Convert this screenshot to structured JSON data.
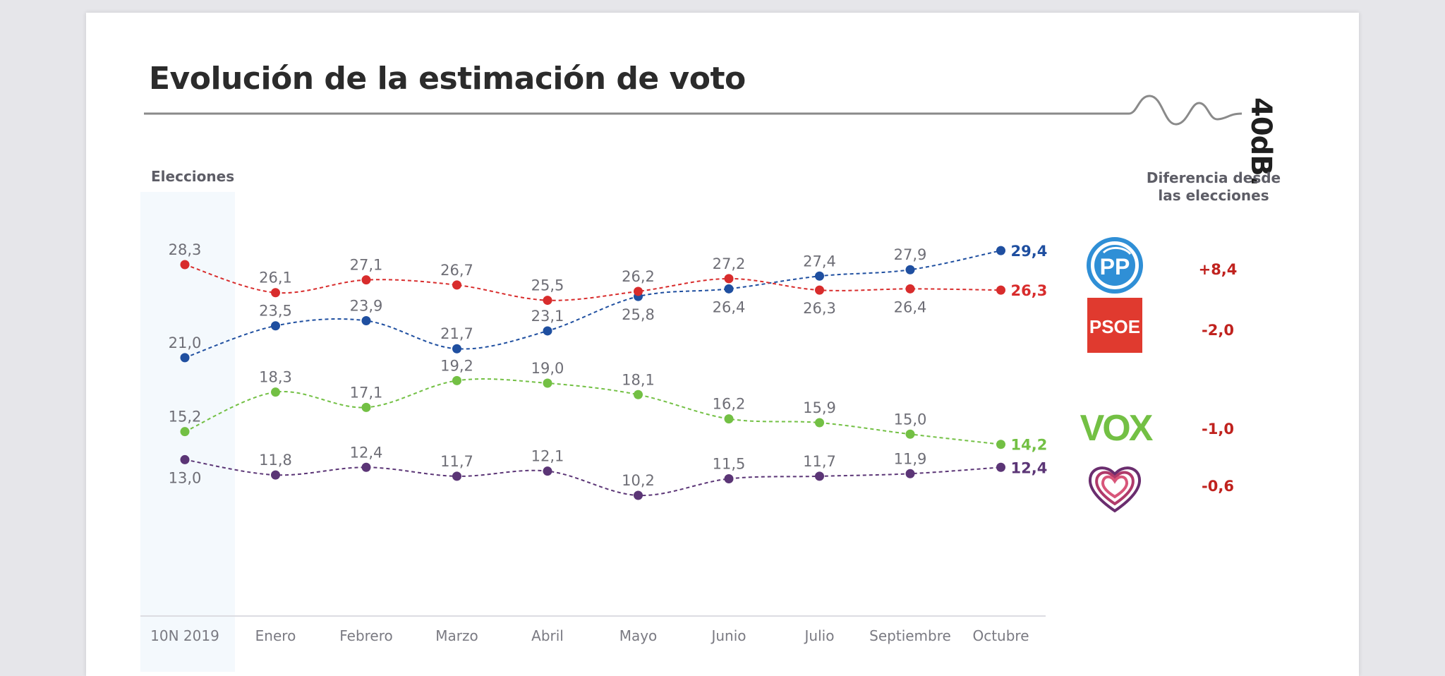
{
  "title": "Evolución de la estimación de voto",
  "brand": "40dB.",
  "elections_header": "Elecciones",
  "difference_header": [
    "Diferencia desde",
    "las elecciones"
  ],
  "chart_data": {
    "type": "line",
    "title": "Evolución de la estimación de voto",
    "x": [
      "10N 2019",
      "Enero",
      "Febrero",
      "Marzo",
      "Abril",
      "Mayo",
      "Junio",
      "Julio",
      "Septiembre",
      "Octubre"
    ],
    "ylim": [
      8,
      31
    ],
    "grid": false,
    "series": [
      {
        "name": "PP",
        "color": "#1f4fa0",
        "values": [
          21.0,
          23.5,
          23.9,
          21.7,
          23.1,
          25.8,
          26.4,
          27.4,
          27.9,
          29.4
        ],
        "labels": [
          "21,0",
          "23,5",
          "23,9",
          "21,7",
          "23,1",
          "25,8",
          "26,4",
          "27,4",
          "27,9",
          "29,4"
        ],
        "label_pos": [
          "above",
          "above",
          "above",
          "above",
          "above",
          "below",
          "below",
          "above",
          "above",
          "right"
        ]
      },
      {
        "name": "PSOE",
        "color": "#d82c2c",
        "values": [
          28.3,
          26.1,
          27.1,
          26.7,
          25.5,
          26.2,
          27.2,
          26.3,
          26.4,
          26.3
        ],
        "labels": [
          "28,3",
          "26,1",
          "27,1",
          "26,7",
          "25,5",
          "26,2",
          "27,2",
          "26,3",
          "26,4",
          "26,3"
        ],
        "label_pos": [
          "above",
          "above",
          "above",
          "above",
          "above",
          "above",
          "above",
          "below",
          "below",
          "right"
        ]
      },
      {
        "name": "VOX",
        "color": "#73c044",
        "values": [
          15.2,
          18.3,
          17.1,
          19.2,
          19.0,
          18.1,
          16.2,
          15.9,
          15.0,
          14.2
        ],
        "labels": [
          "15,2",
          "18,3",
          "17,1",
          "19,2",
          "19,0",
          "18,1",
          "16,2",
          "15,9",
          "15,0",
          "14,2"
        ],
        "label_pos": [
          "above",
          "above",
          "above",
          "above",
          "above",
          "above",
          "above",
          "above",
          "above",
          "right"
        ]
      },
      {
        "name": "Unidas Podemos",
        "color": "#5b3576",
        "values": [
          13.0,
          11.8,
          12.4,
          11.7,
          12.1,
          10.2,
          11.5,
          11.7,
          11.9,
          12.4
        ],
        "labels": [
          "13,0",
          "11,8",
          "12,4",
          "11,7",
          "12,1",
          "10,2",
          "11,5",
          "11,7",
          "11,9",
          "12,4"
        ],
        "label_pos": [
          "below",
          "above",
          "above",
          "above",
          "above",
          "above",
          "above",
          "above",
          "above",
          "right"
        ]
      }
    ]
  },
  "parties": [
    {
      "logo": "pp-logo",
      "logo_text": "PP",
      "difference": "+8,4"
    },
    {
      "logo": "psoe-logo",
      "logo_text": "PSOE",
      "difference": "-2,0"
    },
    {
      "logo": "vox-logo",
      "logo_text": "VOX",
      "difference": "-1,0"
    },
    {
      "logo": "podemos-heart-logo",
      "difference": "-0,6"
    }
  ],
  "colors": {
    "title": "#2b2b2b",
    "axis_label": "#7a7a82",
    "diff": "#c0221e",
    "pp": "#2f8fd6",
    "psoe": "#e03a2f",
    "vox": "#73c044",
    "podemos": "#6a2d6e"
  }
}
